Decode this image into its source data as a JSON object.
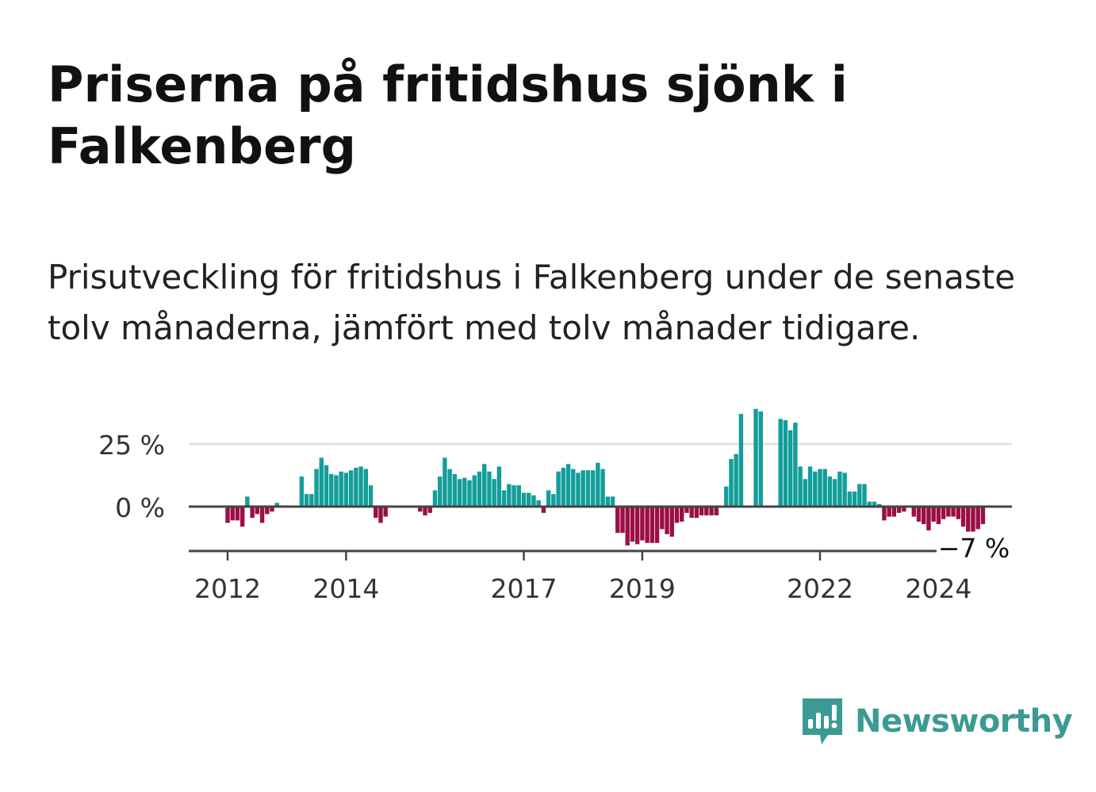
{
  "header": {
    "title": "Priserna på fritidshus sjönk i Falkenberg",
    "subtitle": "Prisutveckling för fritidshus i Falkenberg under de senaste tolv månaderna, jämfört med tolv månader tidigare."
  },
  "brand": {
    "name": "Newsworthy",
    "color": "#3c9a94",
    "icon": "newsworthy-chart-bubble-icon"
  },
  "chart_data": {
    "type": "bar",
    "x_start": "2011-11",
    "x_step": "month",
    "y_ticks": [
      {
        "value": 25,
        "label": "25 %"
      },
      {
        "value": 0,
        "label": "0 %"
      }
    ],
    "x_ticks": [
      {
        "date": "2012-01",
        "label": "2012"
      },
      {
        "date": "2014-01",
        "label": "2014"
      },
      {
        "date": "2017-01",
        "label": "2017"
      },
      {
        "date": "2019-01",
        "label": "2019"
      },
      {
        "date": "2022-01",
        "label": "2022"
      },
      {
        "date": "2024-01",
        "label": "2024"
      }
    ],
    "ylim": [
      -18,
      39
    ],
    "grid": true,
    "colors": {
      "positive": "#129e9a",
      "negative": "#9b0e46"
    },
    "last_value_label": "−7 %",
    "values": [
      0,
      0,
      -6.5,
      -5.5,
      -5.5,
      -8,
      4,
      -4.5,
      -3,
      -6.5,
      -3,
      -2,
      1.5,
      0.5,
      0.5,
      0,
      0,
      12,
      5,
      5,
      15,
      19.5,
      16.5,
      13,
      12.5,
      14,
      13.5,
      14.5,
      15.5,
      16,
      15,
      8.5,
      -4.5,
      -6.5,
      -4,
      0,
      0,
      0,
      0,
      0,
      0,
      -2,
      -3.5,
      -2.5,
      6.5,
      12,
      19.5,
      15,
      13,
      11,
      11.5,
      10.5,
      12.5,
      14,
      17,
      14,
      11,
      16,
      6.5,
      9,
      8.5,
      8.5,
      5.5,
      5.5,
      4.5,
      2.5,
      -2.5,
      6.5,
      5,
      14,
      15.5,
      17,
      15,
      13.5,
      14.5,
      14.5,
      14.5,
      17.5,
      15,
      4,
      4,
      -10.5,
      -10.5,
      -15.5,
      -14,
      -15,
      -13.5,
      -14.5,
      -14.5,
      -14.5,
      -9,
      -11,
      -12,
      -6.5,
      -6,
      -2.5,
      -4.5,
      -4.5,
      -3.5,
      -3.5,
      -3.5,
      -3.5,
      0,
      8,
      19,
      21,
      37,
      0,
      0,
      39,
      38,
      0,
      0,
      0,
      35,
      34.5,
      30.5,
      33.5,
      16,
      11,
      16,
      14,
      15,
      15,
      12,
      11,
      14,
      13.5,
      6,
      6,
      9,
      9,
      2,
      2,
      1,
      -5.5,
      -4,
      -4,
      -2.5,
      -2,
      0,
      -4,
      -6,
      -7,
      -9.5,
      -6,
      -7,
      -5,
      -4,
      -4,
      -5,
      -8,
      -10,
      -10,
      -9,
      -7
    ]
  }
}
